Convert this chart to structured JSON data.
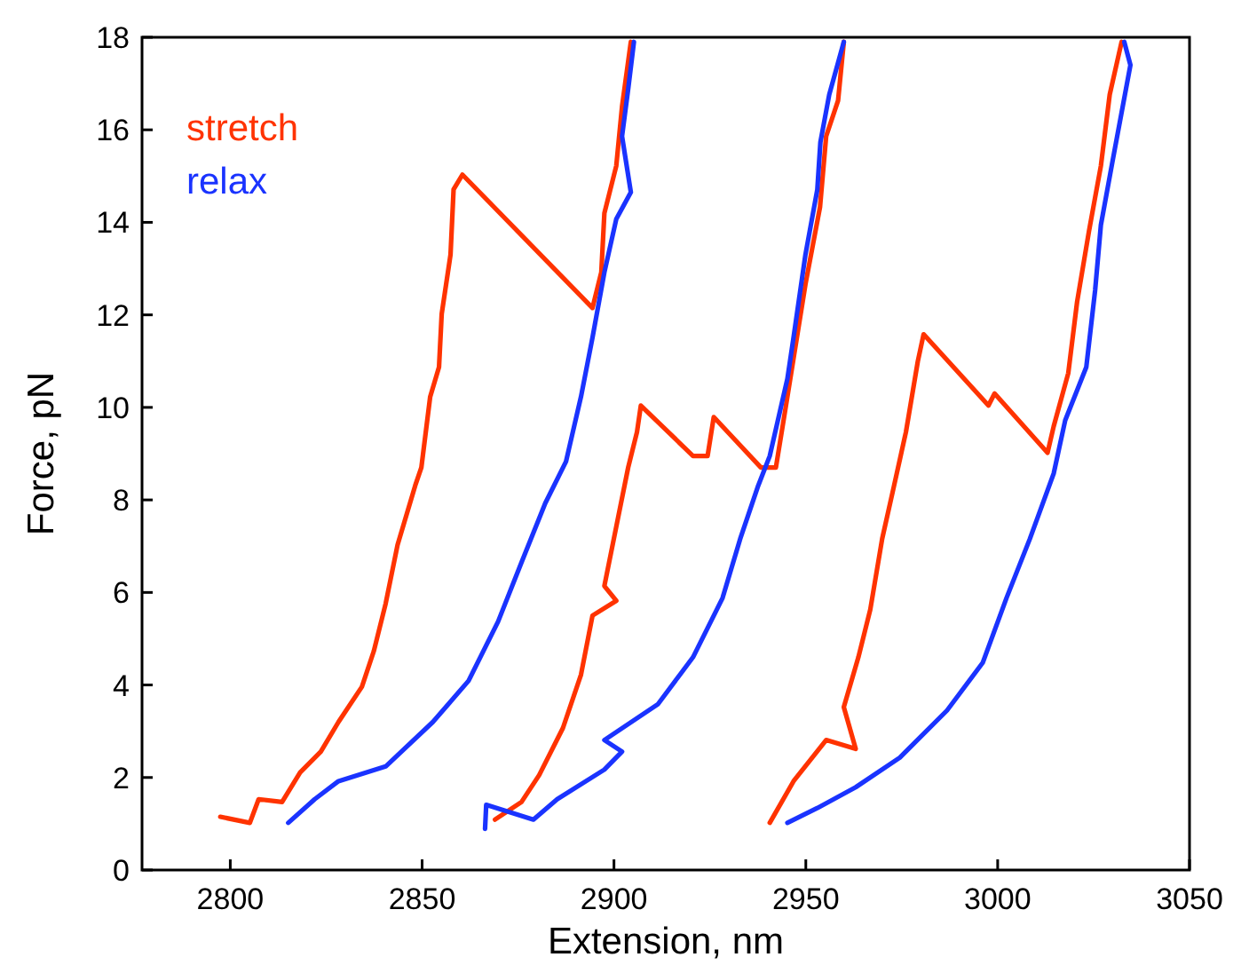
{
  "chart_data": {
    "type": "line",
    "xlabel": "Extension, nm",
    "ylabel": "Force, pN",
    "xlim": [
      2777,
      3050
    ],
    "xticks": [
      2800,
      2850,
      2900,
      2950,
      3000,
      3050
    ],
    "ylim": [
      0,
      18
    ],
    "yticks": [
      0,
      2,
      4,
      6,
      8,
      10,
      12,
      14,
      16,
      18
    ],
    "grid": false,
    "legend": "top left",
    "marker": "none",
    "line_style": "solid",
    "series": [
      {
        "name": "stretch",
        "color": "#ff3300",
        "x": [
          2797.4,
          2805.1,
          2807.4,
          2813.5,
          2818.2,
          2823.6,
          2828.2,
          2834.3,
          2837.4,
          2840.5,
          2843.6,
          2848.2,
          2849.8,
          2852.1,
          2854.4,
          2855.1,
          2857.4,
          2858.2,
          2860.5,
          2894.4,
          2896.7,
          2897.5,
          2900.6,
          2902.1,
          2904.4,
          null,
          2869.0,
          2875.9,
          2880.5,
          2886.7,
          2891.4,
          2894.4,
          2900.6,
          2897.5,
          2900.6,
          2903.7,
          2906.0,
          2907.0,
          2920.6,
          2924.4,
          2926.0,
          2938.3,
          2942.2,
          2945.2,
          2949.9,
          2953.7,
          2955.3,
          2958.4,
          2959.9,
          null,
          2940.6,
          2946.8,
          2955.3,
          2963.0,
          2959.9,
          2963.7,
          2966.8,
          2969.9,
          2973.0,
          2976.1,
          2979.2,
          2980.7,
          2997.6,
          2999.2,
          3013.0,
          3014.6,
          3018.4,
          3020.7,
          3023.8,
          3026.9,
          3029.2,
          3032.3
        ],
        "values": [
          1.15,
          1.02,
          1.53,
          1.47,
          2.11,
          2.56,
          3.2,
          3.96,
          4.73,
          5.76,
          7.03,
          8.31,
          8.7,
          10.23,
          10.87,
          12.02,
          13.3,
          14.71,
          15.03,
          12.15,
          12.92,
          14.2,
          15.22,
          16.5,
          17.9,
          null,
          1.09,
          1.47,
          2.05,
          3.07,
          4.22,
          5.5,
          5.82,
          6.14,
          7.42,
          8.7,
          9.47,
          10.04,
          8.95,
          8.95,
          9.79,
          8.7,
          8.7,
          10.23,
          12.66,
          14.33,
          15.86,
          16.63,
          17.9,
          null,
          1.02,
          1.92,
          2.81,
          2.62,
          3.52,
          4.6,
          5.63,
          7.16,
          8.31,
          9.47,
          11.0,
          11.58,
          10.04,
          10.3,
          9.02,
          9.59,
          10.74,
          12.28,
          13.81,
          15.22,
          16.76,
          17.9
        ]
      },
      {
        "name": "relax",
        "color": "#1a33ff",
        "x": [
          2815.1,
          2822.0,
          2828.2,
          2840.5,
          2852.8,
          2862.1,
          2869.8,
          2875.9,
          2882.1,
          2887.5,
          2891.4,
          2894.4,
          2897.5,
          2900.6,
          2904.4,
          2902.1,
          2903.7,
          2905.2,
          null,
          2866.4,
          2866.7,
          2879.0,
          2885.2,
          2897.5,
          2902.1,
          2897.5,
          2911.4,
          2920.6,
          2928.3,
          2932.9,
          2937.6,
          2940.6,
          2945.2,
          2946.8,
          2949.9,
          2953.0,
          2953.8,
          2956.1,
          2959.9,
          null,
          2945.2,
          2953.0,
          2963.0,
          2974.5,
          2986.8,
          2996.1,
          3002.3,
          3008.4,
          3014.6,
          3017.6,
          3023.1,
          3025.4,
          3026.9,
          3030.0,
          3034.6,
          3033.0
        ],
        "values": [
          1.02,
          1.53,
          1.92,
          2.24,
          3.2,
          4.09,
          5.37,
          6.65,
          7.93,
          8.83,
          10.23,
          11.51,
          12.92,
          14.07,
          14.65,
          15.86,
          16.88,
          17.9,
          null,
          0.89,
          1.41,
          1.09,
          1.53,
          2.17,
          2.56,
          2.81,
          3.58,
          4.6,
          5.88,
          7.16,
          8.31,
          8.95,
          10.62,
          11.51,
          13.3,
          14.71,
          15.73,
          16.76,
          17.9,
          null,
          1.02,
          1.34,
          1.79,
          2.43,
          3.45,
          4.48,
          5.88,
          7.16,
          8.57,
          9.72,
          10.87,
          12.53,
          13.94,
          15.35,
          17.4,
          17.9
        ]
      }
    ]
  }
}
